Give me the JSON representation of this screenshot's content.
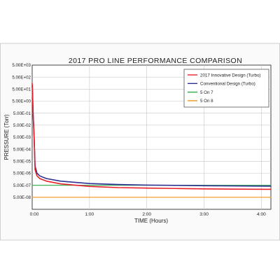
{
  "chart_data": {
    "type": "line",
    "title": "2017 PRO LINE PERFORMANCE COMPARISON",
    "xlabel": "TIME (Hours)",
    "ylabel": "PRESSURE (Torr)",
    "y_scale": "log",
    "xlim": [
      "0:00",
      "4:10"
    ],
    "ylim": [
      "5.00E-09",
      "5.00E+03"
    ],
    "x_ticks": [
      "0:00",
      "1:00",
      "2:00",
      "3:00",
      "4:00"
    ],
    "y_ticks": [
      "5.00E+03",
      "5.00E+02",
      "5.00E+01",
      "5.00E+00",
      "5.00E-01",
      "5.00E-02",
      "5.00E-03",
      "5.00E-04",
      "5.00E-05",
      "5.00E-06",
      "5.00E-07",
      "5.00E-08"
    ],
    "grid": true,
    "legend": "top-right",
    "series": [
      {
        "name": "2017 Innovative Design (Turbo)",
        "color": "#e8202a",
        "points": [
          [
            "0:00",
            "1.50E+02"
          ],
          [
            "0:00.3",
            "5.00E+01"
          ],
          [
            "0:00.6",
            "3.00E+00"
          ],
          [
            "0:01",
            "3.00E-01"
          ],
          [
            "0:01.5",
            "5.00E-02"
          ],
          [
            "0:02",
            "5.00E-03"
          ],
          [
            "0:03",
            "1.00E-05"
          ],
          [
            "0:05",
            "3.00E-06"
          ],
          [
            "0:08",
            "1.80E-06"
          ],
          [
            "0:15",
            "1.10E-06"
          ],
          [
            "0:30",
            "6.50E-07"
          ],
          [
            "1:00",
            "4.00E-07"
          ],
          [
            "1:30",
            "3.20E-07"
          ],
          [
            "2:00",
            "2.90E-07"
          ],
          [
            "2:30",
            "2.70E-07"
          ],
          [
            "3:00",
            "2.50E-07"
          ],
          [
            "3:30",
            "2.40E-07"
          ],
          [
            "4:10",
            "2.30E-07"
          ]
        ]
      },
      {
        "name": "Conventional Design (Turbo)",
        "color": "#2e3192",
        "points": [
          [
            "0:00",
            "1.00E+02"
          ],
          [
            "0:00.5",
            "1.00E+01"
          ],
          [
            "0:01",
            "5.00E-01"
          ],
          [
            "0:01.5",
            "5.00E-02"
          ],
          [
            "0:02",
            "6.00E-03"
          ],
          [
            "0:03",
            "2.00E-05"
          ],
          [
            "0:05",
            "5.00E-06"
          ],
          [
            "0:08",
            "3.00E-06"
          ],
          [
            "0:15",
            "1.80E-06"
          ],
          [
            "0:30",
            "1.10E-06"
          ],
          [
            "1:00",
            "7.00E-07"
          ],
          [
            "1:30",
            "5.80E-07"
          ],
          [
            "2:00",
            "5.20E-07"
          ],
          [
            "2:30",
            "4.90E-07"
          ],
          [
            "3:00",
            "4.60E-07"
          ],
          [
            "3:30",
            "4.40E-07"
          ],
          [
            "4:10",
            "4.20E-07"
          ]
        ]
      },
      {
        "name": "5 On 7",
        "color": "#2eaa4a",
        "points": [
          [
            "0:00",
            "5.00E-07"
          ],
          [
            "4:10",
            "5.00E-07"
          ]
        ]
      },
      {
        "name": "5 On 8",
        "color": "#f7941d",
        "points": [
          [
            "0:00",
            "5.00E-08"
          ],
          [
            "4:10",
            "5.00E-08"
          ]
        ]
      }
    ]
  }
}
